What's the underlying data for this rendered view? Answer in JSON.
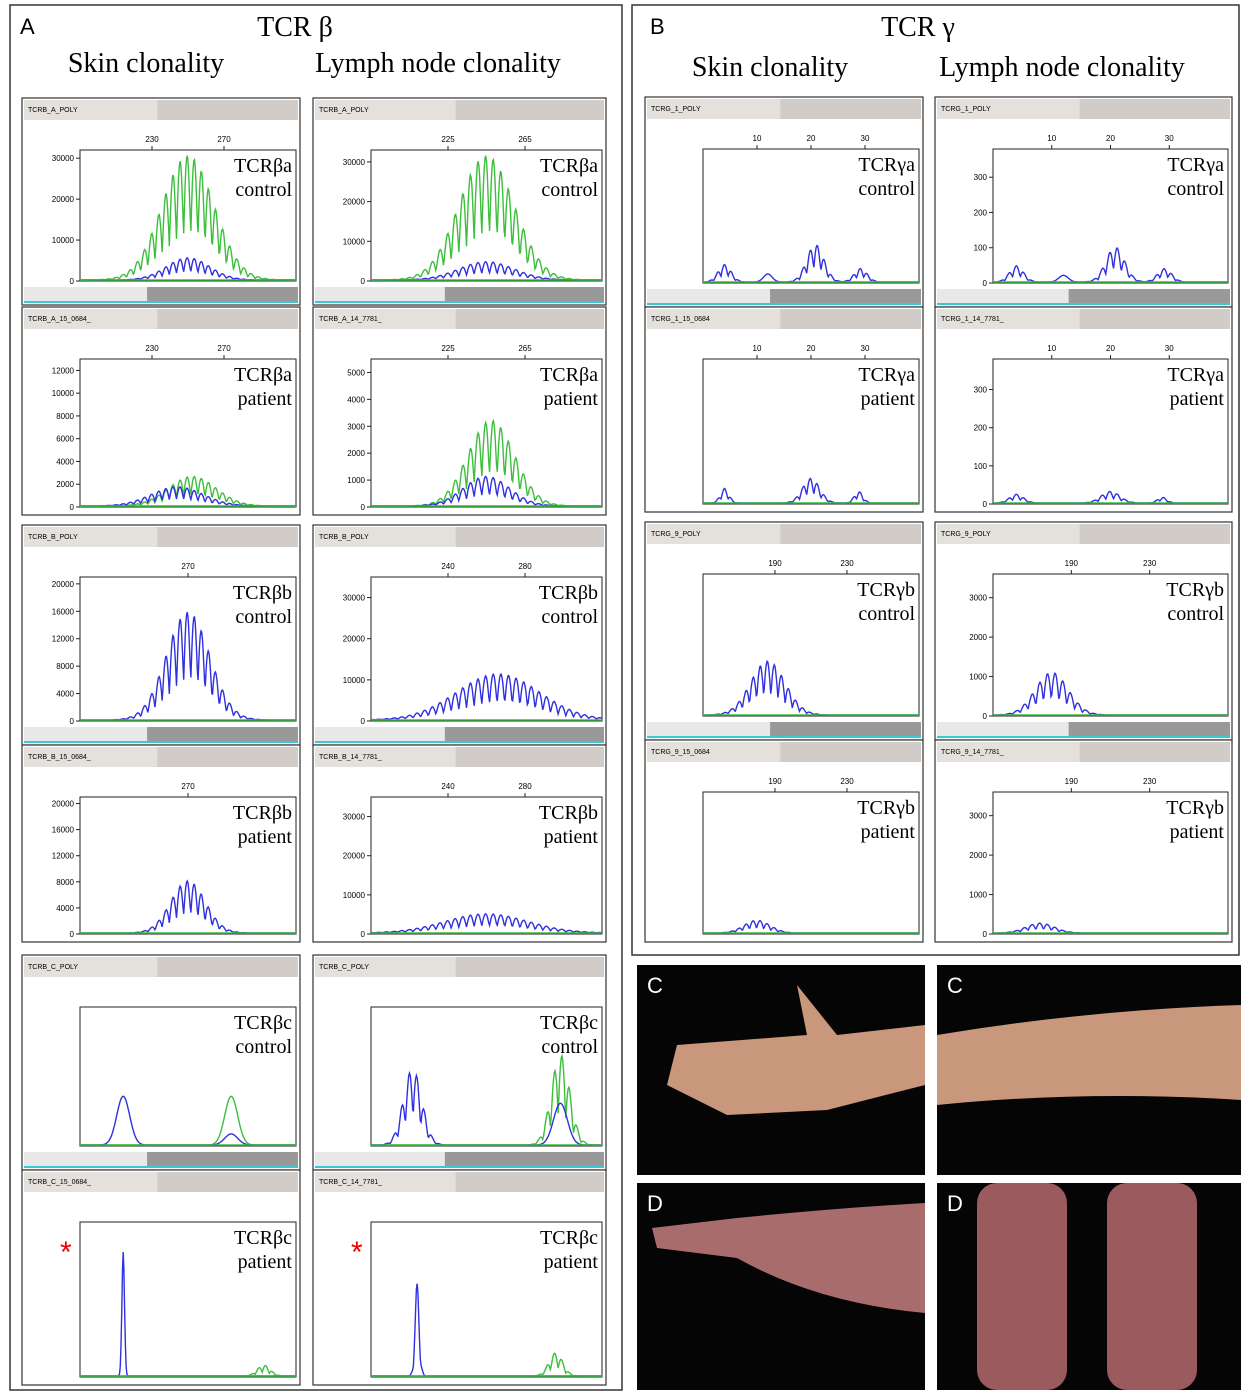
{
  "panel_a": {
    "label": "A",
    "title": "TCR β",
    "columns": [
      "Skin clonality",
      "Lymph node clonality"
    ],
    "plots": [
      {
        "header": "TCRB_A_POLY",
        "xticks": [
          230,
          270
        ],
        "yticks": [
          0,
          10000,
          20000,
          30000
        ],
        "ylim": [
          0,
          32000
        ],
        "label": [
          "TCRβa",
          "control"
        ]
      },
      {
        "header": "TCRB_A_15_0684_",
        "xticks": [
          230,
          270
        ],
        "yticks": [
          0,
          2000,
          4000,
          6000,
          8000,
          10000,
          12000
        ],
        "ylim": [
          0,
          13000
        ],
        "label": [
          "TCRβa",
          "patient"
        ]
      },
      {
        "header": "TCRB_A_POLY",
        "xticks": [
          225,
          265
        ],
        "yticks": [
          0,
          10000,
          20000,
          30000
        ],
        "ylim": [
          0,
          33000
        ],
        "label": [
          "TCRβa",
          "control"
        ]
      },
      {
        "header": "TCRB_A_14_7781_",
        "xticks": [
          225,
          265
        ],
        "yticks": [
          0,
          1000,
          2000,
          3000,
          4000,
          5000
        ],
        "ylim": [
          0,
          5500
        ],
        "label": [
          "TCRβa",
          "patient"
        ]
      },
      {
        "header": "TCRB_B_POLY",
        "xticks": [
          270
        ],
        "yticks": [
          0,
          4000,
          8000,
          12000,
          16000,
          20000
        ],
        "ylim": [
          0,
          21000
        ],
        "label": [
          "TCRβb",
          "control"
        ]
      },
      {
        "header": "TCRB_B_15_0684_",
        "xticks": [
          270
        ],
        "yticks": [
          0,
          4000,
          8000,
          12000,
          16000,
          20000
        ],
        "ylim": [
          0,
          21000
        ],
        "label": [
          "TCRβb",
          "patient"
        ]
      },
      {
        "header": "TCRB_B_POLY",
        "xticks": [
          240,
          280
        ],
        "yticks": [
          0,
          10000,
          20000,
          30000
        ],
        "ylim": [
          0,
          35000
        ],
        "label": [
          "TCRβb",
          "control"
        ]
      },
      {
        "header": "TCRB_B_14_7781_",
        "xticks": [
          240,
          280
        ],
        "yticks": [
          0,
          10000,
          20000,
          30000
        ],
        "ylim": [
          0,
          35000
        ],
        "label": [
          "TCRβb",
          "patient"
        ]
      },
      {
        "header": "TCRB_C_POLY",
        "label": [
          "TCRβc",
          "control"
        ]
      },
      {
        "header": "TCRB_C_15_0684_",
        "label": [
          "TCRβc",
          "patient"
        ],
        "marker": "*"
      },
      {
        "header": "TCRB_C_POLY",
        "label": [
          "TCRβc",
          "control"
        ]
      },
      {
        "header": "TCRB_C_14_7781_",
        "label": [
          "TCRβc",
          "patient"
        ],
        "marker": "*"
      }
    ]
  },
  "panel_b": {
    "label": "B",
    "title": "TCR γ",
    "columns": [
      "Skin clonality",
      "Lymph node clonality"
    ],
    "plots": [
      {
        "header": "TCRG_1_POLY",
        "xticks": [
          10,
          20,
          30
        ],
        "label": [
          "TCRγa",
          "control"
        ]
      },
      {
        "header": "TCRG_1_15_0684",
        "xticks": [
          10,
          20,
          30
        ],
        "label": [
          "TCRγa",
          "patient"
        ]
      },
      {
        "header": "TCRG_1_POLY",
        "xticks": [
          10,
          20,
          30
        ],
        "yticks": [
          0,
          100,
          200,
          300
        ],
        "ylim": [
          0,
          380
        ],
        "label": [
          "TCRγa",
          "control"
        ]
      },
      {
        "header": "TCRG_1_14_7781_",
        "xticks": [
          10,
          20,
          30
        ],
        "yticks": [
          0,
          100,
          200,
          300
        ],
        "ylim": [
          0,
          380
        ],
        "label": [
          "TCRγa",
          "patient"
        ]
      },
      {
        "header": "TCRG_9_POLY",
        "xticks": [
          190,
          230
        ],
        "label": [
          "TCRγb",
          "control"
        ]
      },
      {
        "header": "TCRG_9_15_0684",
        "xticks": [
          190,
          230
        ],
        "label": [
          "TCRγb",
          "patient"
        ]
      },
      {
        "header": "TCRG_9_POLY",
        "xticks": [
          190,
          230
        ],
        "yticks": [
          0,
          1000,
          2000,
          3000
        ],
        "ylim": [
          0,
          3600
        ],
        "label": [
          "TCRγb",
          "control"
        ]
      },
      {
        "header": "TCRG_9_14_7781_",
        "xticks": [
          190,
          230
        ],
        "yticks": [
          0,
          1000,
          2000,
          3000
        ],
        "ylim": [
          0,
          3600
        ],
        "label": [
          "TCRγb",
          "patient"
        ]
      }
    ]
  },
  "photos": [
    "C",
    "C",
    "D",
    "D"
  ]
}
